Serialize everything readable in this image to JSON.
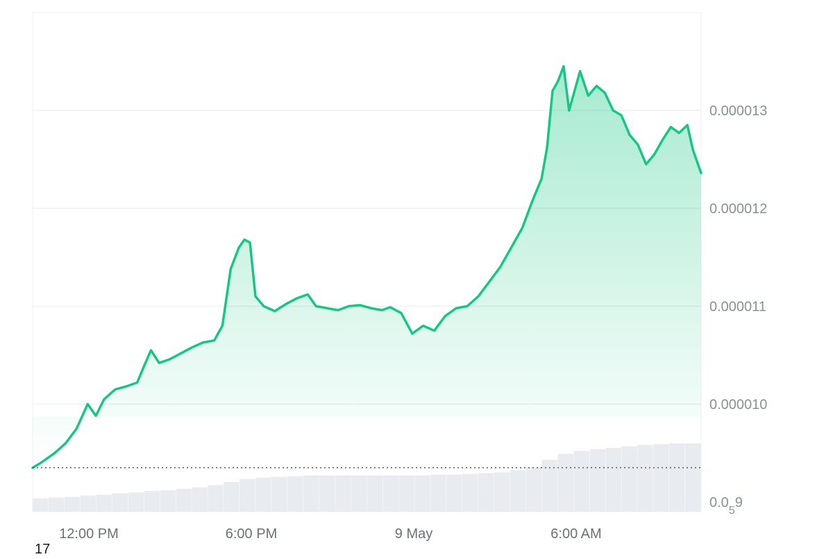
{
  "chart_data": {
    "type": "area",
    "title": "",
    "xlabel": "",
    "ylabel": "",
    "colors": {
      "line": "#16c784",
      "fill": "#16c784",
      "volume": "#e8ebef",
      "grid": "#eef0f3",
      "baseline": "#555555"
    },
    "x_ticks": [
      "12:00 PM",
      "6:00 PM",
      "9 May",
      "6:00 AM"
    ],
    "y_ticks": [
      {
        "value": 1.3e-05,
        "label": "0.000013"
      },
      {
        "value": 1.2e-05,
        "label": "0.000012"
      },
      {
        "value": 1.1e-05,
        "label": "0.000011"
      },
      {
        "value": 1e-05,
        "label": "0.000010"
      },
      {
        "value": 9e-06,
        "label": "0.0",
        "sub": "5",
        "suffix": "9"
      }
    ],
    "ylim": [
      8.9e-06,
      1.4e-05
    ],
    "baseline_value": 9.35e-06,
    "grid": true,
    "x_start_hours": 0,
    "x_end_hours": 24.3,
    "price_series": [
      [
        0.0,
        9.35e-06
      ],
      [
        0.3,
        9.4e-06
      ],
      [
        0.8,
        9.5e-06
      ],
      [
        1.2,
        9.6e-06
      ],
      [
        1.6,
        9.75e-06
      ],
      [
        2.0,
        1e-05
      ],
      [
        2.3,
        9.88e-06
      ],
      [
        2.6,
        1.005e-05
      ],
      [
        3.0,
        1.015e-05
      ],
      [
        3.4,
        1.018e-05
      ],
      [
        3.8,
        1.022e-05
      ],
      [
        4.1,
        1.042e-05
      ],
      [
        4.3,
        1.055e-05
      ],
      [
        4.6,
        1.042e-05
      ],
      [
        5.0,
        1.046e-05
      ],
      [
        5.4,
        1.052e-05
      ],
      [
        5.8,
        1.058e-05
      ],
      [
        6.2,
        1.063e-05
      ],
      [
        6.6,
        1.065e-05
      ],
      [
        6.9,
        1.08e-05
      ],
      [
        7.2,
        1.138e-05
      ],
      [
        7.5,
        1.16e-05
      ],
      [
        7.7,
        1.168e-05
      ],
      [
        7.9,
        1.165e-05
      ],
      [
        8.1,
        1.11e-05
      ],
      [
        8.4,
        1.1e-05
      ],
      [
        8.8,
        1.095e-05
      ],
      [
        9.2,
        1.102e-05
      ],
      [
        9.6,
        1.108e-05
      ],
      [
        10.0,
        1.112e-05
      ],
      [
        10.3,
        1.1e-05
      ],
      [
        10.7,
        1.098e-05
      ],
      [
        11.1,
        1.096e-05
      ],
      [
        11.5,
        1.1e-05
      ],
      [
        11.9,
        1.101e-05
      ],
      [
        12.3,
        1.098e-05
      ],
      [
        12.7,
        1.096e-05
      ],
      [
        13.0,
        1.099e-05
      ],
      [
        13.4,
        1.093e-05
      ],
      [
        13.8,
        1.072e-05
      ],
      [
        14.2,
        1.08e-05
      ],
      [
        14.6,
        1.075e-05
      ],
      [
        15.0,
        1.09e-05
      ],
      [
        15.4,
        1.098e-05
      ],
      [
        15.8,
        1.1e-05
      ],
      [
        16.2,
        1.11e-05
      ],
      [
        16.6,
        1.125e-05
      ],
      [
        17.0,
        1.14e-05
      ],
      [
        17.4,
        1.16e-05
      ],
      [
        17.8,
        1.18e-05
      ],
      [
        18.2,
        1.21e-05
      ],
      [
        18.5,
        1.23e-05
      ],
      [
        18.7,
        1.262e-05
      ],
      [
        18.9,
        1.32e-05
      ],
      [
        19.1,
        1.33e-05
      ],
      [
        19.3,
        1.345e-05
      ],
      [
        19.5,
        1.3e-05
      ],
      [
        19.7,
        1.32e-05
      ],
      [
        19.9,
        1.34e-05
      ],
      [
        20.2,
        1.315e-05
      ],
      [
        20.5,
        1.325e-05
      ],
      [
        20.8,
        1.318e-05
      ],
      [
        21.1,
        1.3e-05
      ],
      [
        21.4,
        1.295e-05
      ],
      [
        21.7,
        1.275e-05
      ],
      [
        22.0,
        1.265e-05
      ],
      [
        22.3,
        1.245e-05
      ],
      [
        22.6,
        1.255e-05
      ],
      [
        22.9,
        1.27e-05
      ],
      [
        23.2,
        1.283e-05
      ],
      [
        23.5,
        1.277e-05
      ],
      [
        23.8,
        1.285e-05
      ],
      [
        24.0,
        1.26e-05
      ],
      [
        24.3,
        1.236e-05
      ]
    ],
    "volume_series": [
      0.18,
      0.19,
      0.2,
      0.22,
      0.23,
      0.25,
      0.26,
      0.28,
      0.29,
      0.31,
      0.33,
      0.36,
      0.4,
      0.44,
      0.46,
      0.47,
      0.48,
      0.49,
      0.49,
      0.49,
      0.49,
      0.49,
      0.49,
      0.49,
      0.49,
      0.5,
      0.5,
      0.51,
      0.52,
      0.53,
      0.56,
      0.6,
      0.7,
      0.78,
      0.82,
      0.84,
      0.86,
      0.88,
      0.9,
      0.91,
      0.92,
      0.92
    ],
    "corner_label": "17"
  }
}
